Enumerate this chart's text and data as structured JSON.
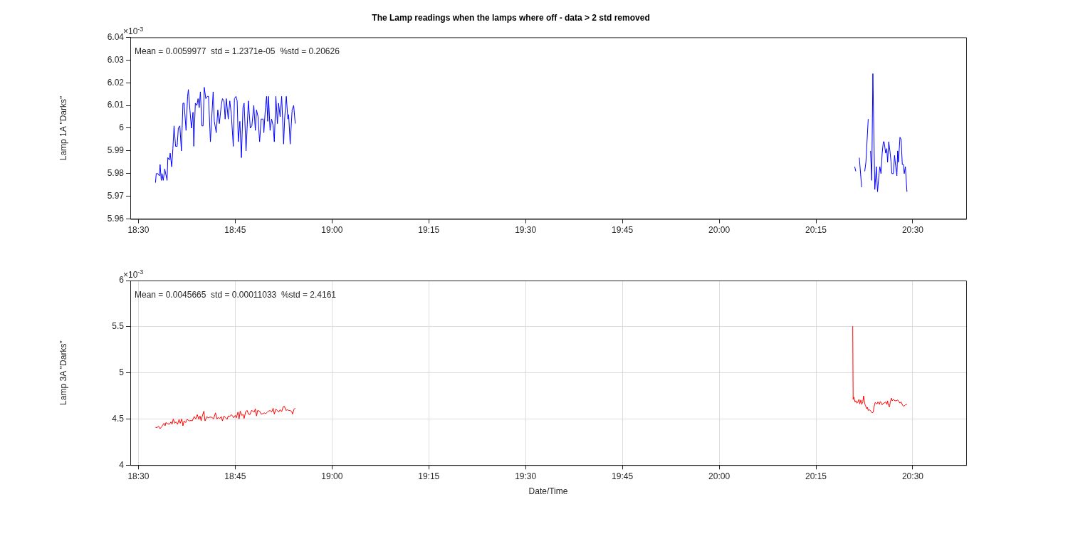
{
  "chart_data": [
    {
      "type": "line",
      "title": "The Lamp readings when the lamps where off - data > 2 std removed",
      "ylabel": "Lamp 1A \"Darks\"",
      "grid": false,
      "marker": "none",
      "xlim": [
        18.479,
        20.638
      ],
      "xticks": [
        {
          "value": 18.5,
          "label": "18:30"
        },
        {
          "value": 18.75,
          "label": "18:45"
        },
        {
          "value": 19,
          "label": "19:00"
        },
        {
          "value": 19.25,
          "label": "19:15"
        },
        {
          "value": 19.5,
          "label": "19:30"
        },
        {
          "value": 19.75,
          "label": "19:45"
        },
        {
          "value": 20,
          "label": "20:00"
        },
        {
          "value": 20.25,
          "label": "20:15"
        },
        {
          "value": 20.5,
          "label": "20:30"
        }
      ],
      "ylim": [
        5.96,
        6.04
      ],
      "yticks": [
        5.96,
        5.97,
        5.98,
        5.99,
        6,
        6.01,
        6.02,
        6.03,
        6.04
      ],
      "annotations": [
        "×10$^{-3}$",
        "Mean = 0.0059977  std = 1.2371e-05  %std = 0.20626"
      ],
      "series": [
        {
          "color": "#0000ff",
          "x": [
            18.544,
            18.546,
            18.55,
            18.554,
            18.556,
            18.559,
            18.561,
            18.564,
            18.568,
            18.574,
            18.576,
            18.58,
            18.582,
            18.586,
            18.589,
            18.592,
            18.596,
            18.6,
            18.603,
            18.607,
            18.611,
            18.615,
            18.618,
            18.623,
            18.627,
            18.629,
            18.633,
            18.637,
            18.641,
            18.643,
            18.647,
            18.651,
            18.654,
            18.657,
            18.66,
            18.664,
            18.667,
            18.67,
            18.674,
            18.678,
            18.681,
            18.686,
            18.693,
            18.696,
            18.701,
            18.705,
            18.709,
            18.714,
            18.717,
            18.721,
            18.724,
            18.727,
            18.732,
            18.736,
            18.74,
            18.745,
            18.748,
            18.752,
            18.755,
            18.758,
            18.762,
            18.766,
            18.77,
            18.773,
            18.778,
            18.784,
            18.789,
            18.793,
            18.798,
            18.802,
            18.805,
            18.809,
            18.813,
            18.817,
            18.822,
            18.824,
            18.828,
            18.831,
            18.834,
            18.836,
            18.84,
            18.844,
            18.848,
            18.851,
            18.855,
            18.859,
            18.862,
            18.866,
            18.87,
            18.875,
            18.878,
            18.882,
            18.886,
            18.888,
            18.892,
            18.897,
            18.901,
            18.905,
            19.6,
            20.35,
            20.353,
            20.357,
            20.362,
            20.368,
            20.372,
            20.376,
            20.379,
            20.385,
            20.388,
            20.391,
            20.394,
            20.397,
            20.402,
            20.406,
            20.409,
            20.413,
            20.415,
            20.418,
            20.421,
            20.424,
            20.426,
            20.43,
            20.433,
            20.435,
            20.438,
            20.441,
            20.444,
            20.446,
            20.45,
            20.453,
            20.456,
            20.459,
            20.461,
            20.463,
            20.467,
            20.47,
            20.473,
            20.476,
            20.478,
            20.481,
            20.485
          ],
          "values": [
            5.976,
            5.98,
            5.98,
            5.979,
            5.984,
            5.977,
            5.98,
            5.977,
            5.982,
            5.977,
            5.987,
            5.986,
            5.989,
            5.983,
            5.991,
            6.001,
            5.992,
            5.992,
            6.0,
            6.001,
            5.99,
            6.011,
            6.011,
            5.999,
            6.014,
            6.017,
            6.008,
            6.0,
            6.007,
            5.992,
            6.011,
            6.01,
            6.013,
            6.009,
            6.016,
            6.001,
            6.001,
            6.018,
            6.013,
            6.014,
            6.014,
            5.994,
            6.016,
            6.003,
            5.998,
            6.008,
            6.002,
            6.01,
            6.013,
            6.012,
            6.004,
            6.013,
            6.004,
            6.012,
            6.006,
            5.992,
            6.013,
            6.014,
            6.012,
            5.994,
            6.003,
            5.987,
            6.009,
            6.011,
            5.99,
            6.012,
            6.0,
            6.001,
            6.01,
            5.999,
            6.008,
            6.005,
            5.994,
            6.004,
            6.004,
            5.998,
            6.009,
            6.014,
            6.003,
            6.014,
            5.999,
            6.004,
            6.001,
            5.994,
            6.014,
            6.002,
            6.011,
            6.005,
            6.014,
            5.993,
            6.005,
            6.014,
            6.004,
            6.006,
            5.993,
            6.008,
            6.01,
            6.002,
            null,
            5.983,
            5.981,
            null,
            5.987,
            5.974,
            null,
            5.981,
            5.985,
            6.004,
            null,
            5.99,
            5.977,
            6.024,
            5.973,
            5.983,
            5.972,
            5.98,
            5.983,
            5.98,
            5.989,
            5.994,
            5.994,
            5.989,
            5.991,
            5.985,
            5.994,
            5.99,
            5.985,
            5.98,
            5.98,
            5.988,
            5.983,
            5.979,
            5.99,
            5.985,
            5.996,
            5.995,
            5.984,
            5.984,
            5.98,
            5.983,
            5.972
          ]
        }
      ]
    },
    {
      "type": "line",
      "xlabel": "Date/Time",
      "ylabel": "Lamp 3A \"Darks\"",
      "grid": true,
      "marker": "none",
      "xlim": [
        18.479,
        20.638
      ],
      "xticks": [
        {
          "value": 18.5,
          "label": "18:30"
        },
        {
          "value": 18.75,
          "label": "18:45"
        },
        {
          "value": 19,
          "label": "19:00"
        },
        {
          "value": 19.25,
          "label": "19:15"
        },
        {
          "value": 19.5,
          "label": "19:30"
        },
        {
          "value": 19.75,
          "label": "19:45"
        },
        {
          "value": 20,
          "label": "20:00"
        },
        {
          "value": 20.25,
          "label": "20:15"
        },
        {
          "value": 20.5,
          "label": "20:30"
        }
      ],
      "ylim": [
        4,
        6
      ],
      "yticks": [
        4,
        4.5,
        5,
        5.5,
        6
      ],
      "annotations": [
        "×10$^{-3}$",
        "Mean = 0.0045665  std = 0.00011033  %std = 2.4161"
      ],
      "series": [
        {
          "color": "#ff0000",
          "x": [
            18.544,
            18.549,
            18.552,
            18.556,
            18.561,
            18.566,
            18.569,
            18.571,
            18.576,
            18.58,
            18.584,
            18.587,
            18.59,
            18.594,
            18.597,
            18.601,
            18.605,
            18.608,
            18.612,
            18.615,
            18.618,
            18.622,
            18.626,
            18.631,
            18.636,
            18.639,
            18.644,
            18.648,
            18.652,
            18.656,
            18.659,
            18.662,
            18.665,
            18.669,
            18.672,
            18.677,
            18.68,
            18.685,
            18.69,
            18.694,
            18.699,
            18.703,
            18.706,
            18.71,
            18.714,
            18.717,
            18.721,
            18.725,
            18.729,
            18.732,
            18.736,
            18.74,
            18.743,
            18.746,
            18.75,
            18.753,
            18.757,
            18.76,
            18.763,
            18.767,
            18.771,
            18.773,
            18.777,
            18.781,
            18.784,
            18.788,
            18.792,
            18.796,
            18.799,
            18.802,
            18.805,
            18.808,
            18.813,
            18.817,
            18.822,
            18.825,
            18.829,
            18.833,
            18.836,
            18.84,
            18.844,
            18.848,
            18.851,
            18.855,
            18.859,
            18.862,
            18.866,
            18.87,
            18.874,
            18.877,
            18.881,
            18.885,
            18.888,
            18.892,
            18.896,
            18.898,
            18.902,
            18.905,
            19.6,
            20.345,
            20.346,
            20.348,
            20.351,
            20.353,
            20.356,
            20.358,
            20.361,
            20.363,
            20.366,
            20.368,
            20.371,
            20.373,
            20.376,
            20.378,
            20.381,
            20.383,
            20.385,
            20.388,
            20.392,
            20.395,
            20.398,
            20.4,
            20.403,
            20.405,
            20.408,
            20.41,
            20.414,
            20.416,
            20.419,
            20.421,
            20.424,
            20.426,
            20.43,
            20.433,
            20.435,
            20.437,
            20.44,
            20.442,
            20.445,
            20.447,
            20.45,
            20.454,
            20.457,
            20.461,
            20.464,
            20.467,
            20.47,
            20.472,
            20.475,
            20.477,
            20.481,
            20.485
          ],
          "values": [
            4.408,
            4.408,
            4.421,
            4.395,
            4.421,
            4.453,
            4.426,
            4.461,
            4.447,
            4.442,
            4.468,
            4.442,
            4.5,
            4.453,
            4.468,
            4.442,
            4.495,
            4.453,
            4.5,
            4.426,
            4.479,
            4.461,
            4.495,
            4.479,
            4.484,
            4.479,
            4.526,
            4.5,
            4.547,
            4.495,
            4.532,
            4.479,
            4.532,
            4.584,
            4.479,
            4.526,
            4.511,
            4.521,
            4.516,
            4.5,
            4.566,
            4.5,
            4.516,
            4.505,
            4.526,
            4.479,
            4.532,
            4.513,
            4.495,
            4.532,
            4.526,
            4.547,
            4.532,
            4.513,
            4.539,
            4.513,
            4.574,
            4.5,
            4.584,
            4.539,
            4.547,
            4.505,
            4.579,
            4.592,
            4.553,
            4.547,
            4.592,
            4.584,
            4.574,
            4.611,
            4.532,
            4.592,
            4.584,
            4.553,
            4.558,
            4.566,
            4.558,
            4.574,
            4.584,
            4.592,
            4.574,
            4.616,
            4.553,
            4.605,
            4.592,
            4.574,
            4.6,
            4.579,
            4.632,
            4.637,
            4.592,
            4.6,
            4.592,
            4.592,
            4.579,
            4.553,
            4.605,
            4.618,
            null,
            5.505,
            4.711,
            4.737,
            4.684,
            4.697,
            4.671,
            4.684,
            4.711,
            4.663,
            4.705,
            4.658,
            4.684,
            4.75,
            4.663,
            4.645,
            4.611,
            4.626,
            4.592,
            4.6,
            4.584,
            4.566,
            4.574,
            4.632,
            4.679,
            4.671,
            4.663,
            4.684,
            4.658,
            4.689,
            4.671,
            4.653,
            4.671,
            4.671,
            4.684,
            4.658,
            4.697,
            4.645,
            4.632,
            4.684,
            4.726,
            4.697,
            4.711,
            4.697,
            4.697,
            4.705,
            4.689,
            4.671,
            4.684,
            4.663,
            4.642,
            4.637,
            4.653,
            4.658
          ]
        }
      ]
    }
  ]
}
